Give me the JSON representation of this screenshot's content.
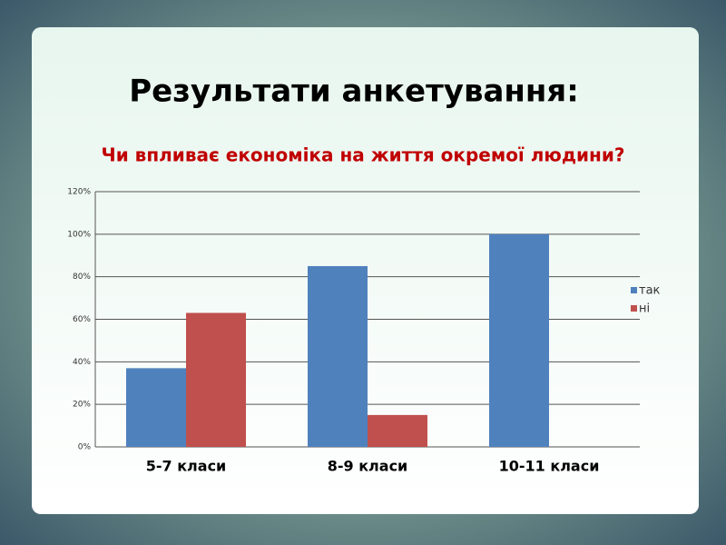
{
  "chart_data": {
    "type": "bar",
    "title": "Результати анкетування:",
    "subtitle": "Чи впливає економіка на життя окремої людини?",
    "categories": [
      "5-7 класи",
      "8-9 класи",
      "10-11 класи"
    ],
    "series": [
      {
        "name": "так",
        "color": "#4f81bd",
        "values": [
          37,
          85,
          100
        ]
      },
      {
        "name": "ні",
        "color": "#c0504d",
        "values": [
          63,
          15,
          0
        ]
      }
    ],
    "ylim": [
      0,
      120
    ],
    "yticks": [
      {
        "value": 0,
        "label": "0%"
      },
      {
        "value": 20,
        "label": "20%"
      },
      {
        "value": 40,
        "label": "40%"
      },
      {
        "value": 60,
        "label": "60%"
      },
      {
        "value": 80,
        "label": "80%"
      },
      {
        "value": 100,
        "label": "100%"
      },
      {
        "value": 120,
        "label": "120%"
      }
    ],
    "grid": true,
    "legend": "right"
  }
}
